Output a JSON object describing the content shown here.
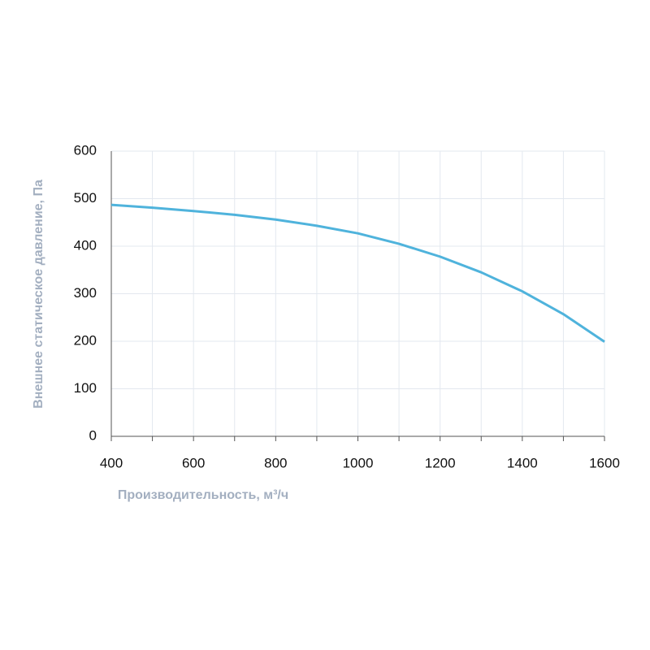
{
  "chart_data": {
    "type": "line",
    "x_label": "Производительность, м³/ч",
    "y_label": "Внешнее статическое давление, Па",
    "x": [
      400,
      500,
      600,
      700,
      800,
      900,
      1000,
      1100,
      1200,
      1300,
      1400,
      1500,
      1600
    ],
    "series": [
      {
        "color": "#4fb3dc",
        "values": [
          487,
          481,
          474,
          466,
          456,
          443,
          427,
          405,
          378,
          345,
          305,
          257,
          199
        ]
      }
    ],
    "xlim": [
      400,
      1600
    ],
    "xticks": [
      400,
      600,
      800,
      1000,
      1200,
      1400,
      1600
    ],
    "xgrid": [
      400,
      500,
      600,
      700,
      800,
      900,
      1000,
      1100,
      1200,
      1300,
      1400,
      1500,
      1600
    ],
    "ylim": [
      0,
      600
    ],
    "yticks": [
      0,
      100,
      200,
      300,
      400,
      500,
      600
    ],
    "grid": true
  }
}
